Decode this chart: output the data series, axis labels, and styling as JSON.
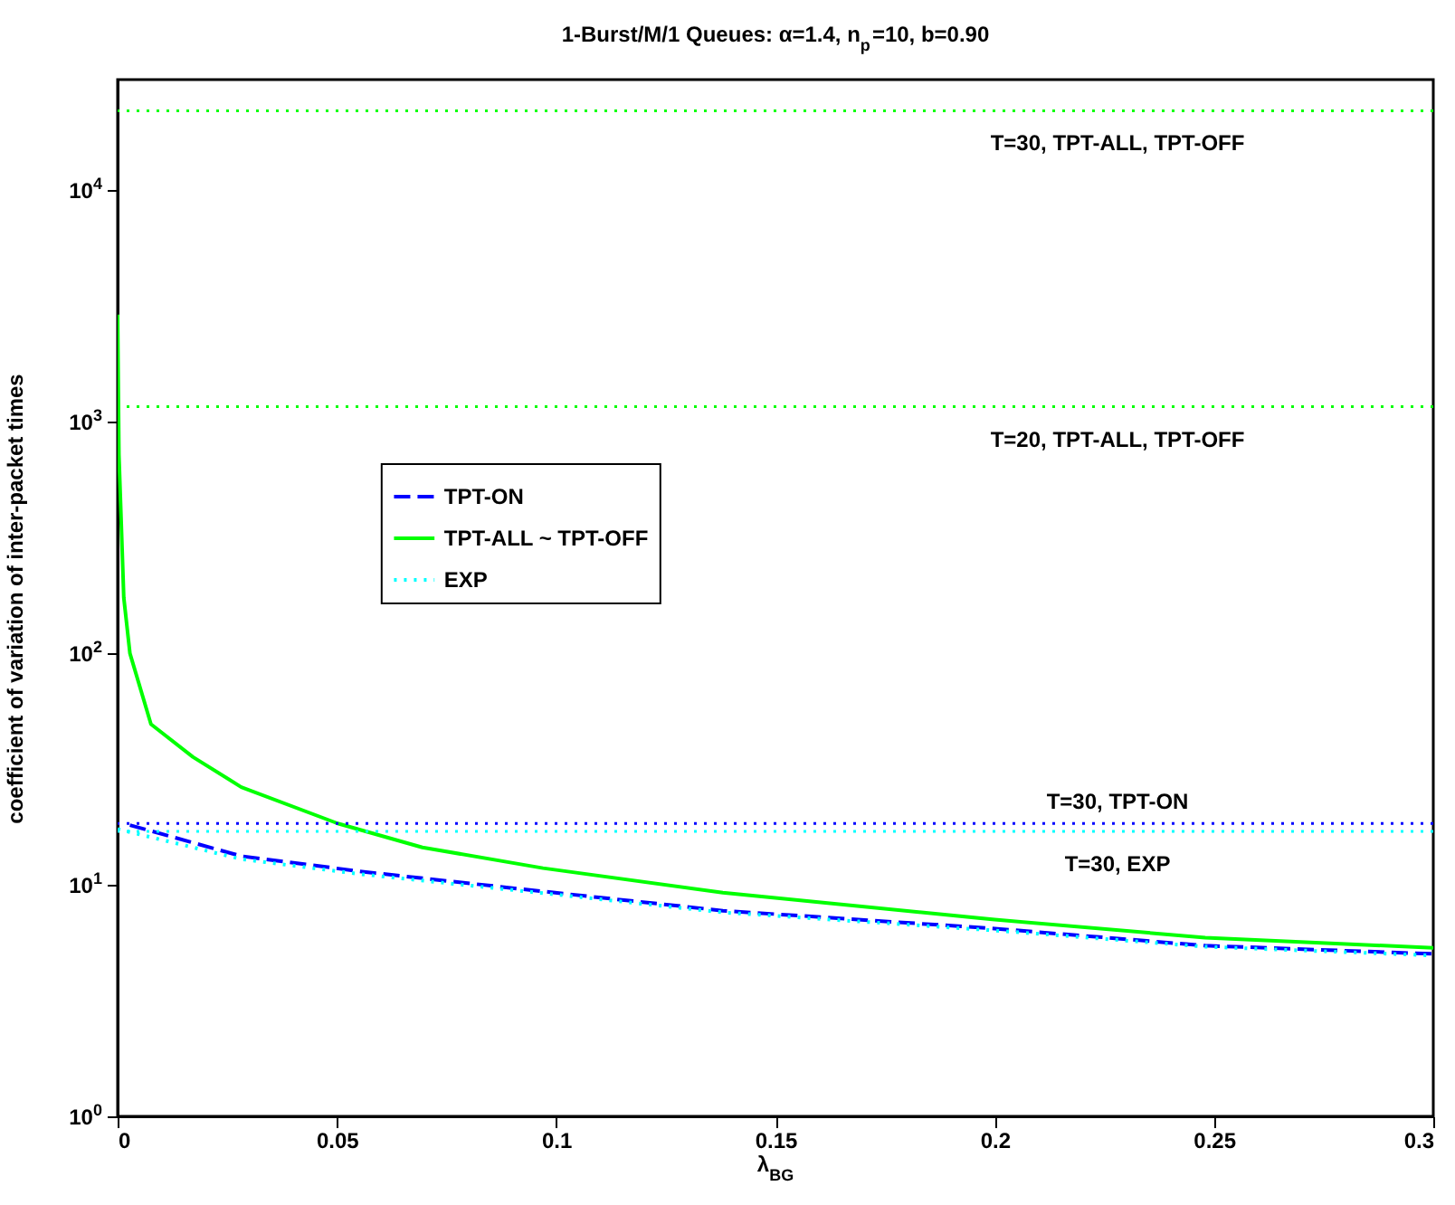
{
  "chart_data": {
    "type": "line",
    "title": "1-Burst/M/1 Queues:  α=1.4, n$_{p}$=10, b=0.90",
    "xlabel": "λ$_{BG}$",
    "ylabel": "coefficient of variation of inter-packet times",
    "series": [
      {
        "name": "TPT-ON",
        "color": "#0000ff",
        "line_style": "dashed",
        "x": [
          0.0028,
          0.0282,
          0.0557,
          0.097,
          0.138,
          0.2,
          0.248,
          0.3
        ],
        "values": [
          18.1,
          13.3,
          11.4,
          9.36,
          7.73,
          6.47,
          5.46,
          5.03
        ]
      },
      {
        "name": "TPT-ALL ~ TPT-OFF",
        "color": "#00ff00",
        "line_style": "solid",
        "x": [
          0,
          0.0003,
          0.0014,
          0.0028,
          0.0076,
          0.0172,
          0.0282,
          0.0502,
          0.0695,
          0.097,
          0.138,
          0.2,
          0.248,
          0.3
        ],
        "values": [
          2900,
          720,
          174,
          100,
          49.4,
          35.6,
          26.4,
          18.4,
          14.5,
          11.8,
          9.25,
          7.07,
          5.91,
          5.34
        ]
      },
      {
        "name": "EXP",
        "color": "#00ffff",
        "line_style": "dotted",
        "x": [
          0,
          0.0282,
          0.0557,
          0.097,
          0.138,
          0.2,
          0.248,
          0.3
        ],
        "values": [
          17.4,
          12.9,
          11.1,
          9.2,
          7.6,
          6.35,
          5.4,
          4.95
        ]
      }
    ],
    "ref_lines": [
      {
        "axis": "y",
        "value": 22000,
        "color": "#00ff00",
        "line_style": "dotted"
      },
      {
        "axis": "y",
        "value": 1160,
        "color": "#00ff00",
        "line_style": "dotted"
      },
      {
        "axis": "y",
        "value": 18.4,
        "color": "#0000ff",
        "line_style": "dotted"
      },
      {
        "axis": "y",
        "value": 17.0,
        "color": "#00ffff",
        "line_style": "dotted"
      }
    ],
    "annotations": [
      {
        "text": "T=30, TPT-ALL, TPT-OFF",
        "y": 22000
      },
      {
        "text": "T=20, TPT-ALL, TPT-OFF",
        "y": 1160
      },
      {
        "text": "T=30, TPT-ON",
        "y": 18.4
      },
      {
        "text": "T=30, EXP",
        "y": 17.0
      }
    ],
    "xlim": [
      0,
      0.3
    ],
    "xticks": [
      0,
      0.05,
      0.1,
      0.15,
      0.2,
      0.25,
      0.3
    ],
    "ylim": [
      1,
      30000
    ],
    "yticks": [
      {
        "value": 1,
        "label": "10$^{0}$"
      },
      {
        "value": 10,
        "label": "10$^{1}$"
      },
      {
        "value": 100,
        "label": "10$^{2}$"
      },
      {
        "value": 1000,
        "label": "10$^{3}$"
      },
      {
        "value": 10000,
        "label": "10$^{4}$"
      }
    ],
    "log": "y",
    "legend": "left"
  }
}
